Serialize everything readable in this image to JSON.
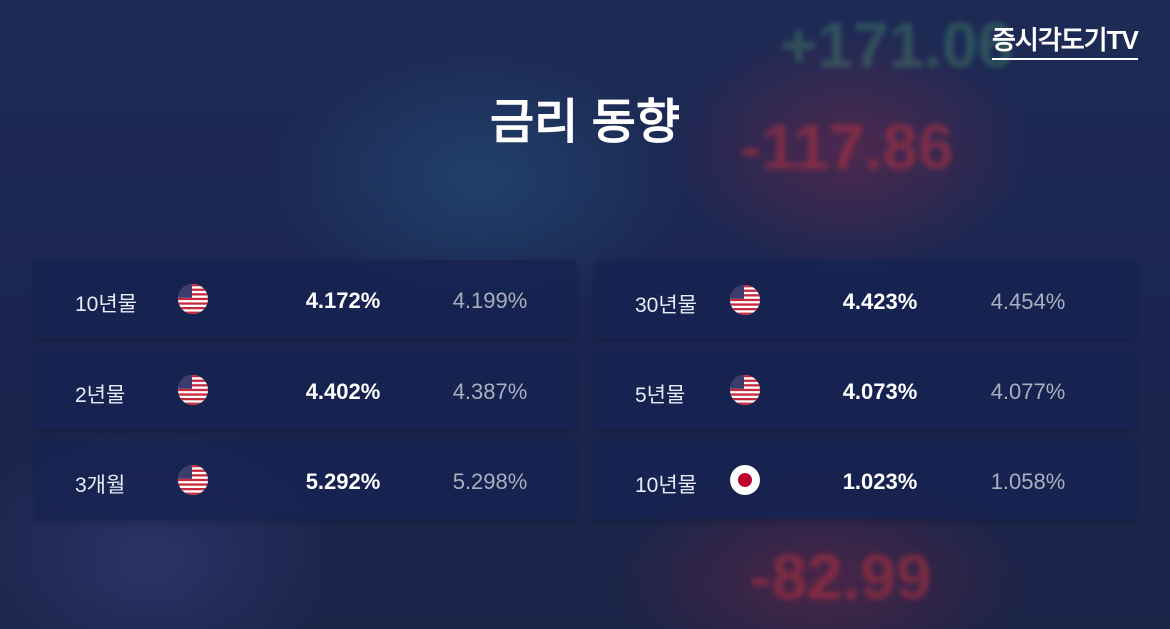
{
  "logo": "증시각도기TV",
  "title": "금리 동향",
  "background_texts": [
    "+171.06",
    "-117.86",
    "-82.99"
  ],
  "panels": [
    {
      "rows": [
        {
          "label": "10년물",
          "value": "4.172%",
          "previous": "4.199%"
        },
        {
          "label": "2년물",
          "value": "4.402%",
          "previous": "4.387%"
        },
        {
          "label": "3개월",
          "value": "5.292%",
          "previous": "5.298%"
        }
      ]
    },
    {
      "rows": [
        {
          "label": "30년물",
          "value": "4.423%",
          "previous": "4.454%"
        },
        {
          "label": "5년물",
          "value": "4.073%",
          "previous": "4.077%"
        },
        {
          "label": "10년물",
          "value": "1.023%",
          "previous": "1.058%"
        }
      ]
    }
  ]
}
